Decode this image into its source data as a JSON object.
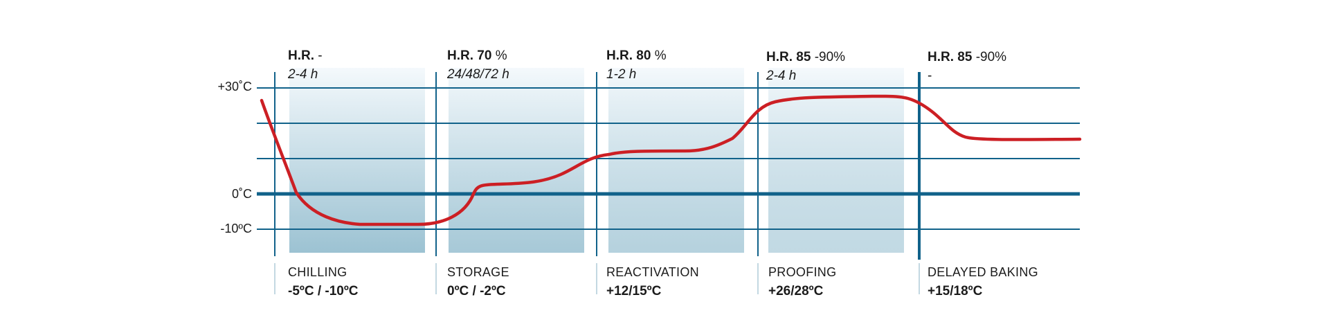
{
  "y_axis": {
    "ticks": [
      {
        "label": "+30˚C",
        "value": 30
      },
      {
        "label": "0˚C",
        "value": 0
      },
      {
        "label": "-10ºC",
        "value": -10
      }
    ]
  },
  "phases": [
    {
      "id": "chilling",
      "hr_label": "H.R.",
      "hr_value": "-",
      "time": "2-4 h",
      "name": "CHILLING",
      "temp_range": "-5ºC / -10ºC",
      "shade_level": 0.6
    },
    {
      "id": "storage",
      "hr_label": "H.R. 70",
      "hr_value": "%",
      "time": "24/48/72 h",
      "name": "STORAGE",
      "temp_range": "0ºC / -2ºC",
      "shade_level": 0.5
    },
    {
      "id": "reactivation",
      "hr_label": "H.R. 80",
      "hr_value": "%",
      "time": "1-2 h",
      "name": "REACTIVATION",
      "temp_range": "+12/15ºC",
      "shade_level": 0.36
    },
    {
      "id": "proofing",
      "hr_label": "H.R. 85",
      "hr_value": "-90%",
      "time": "2-4 h",
      "name": "PROOFING",
      "temp_range": "+26/28ºC",
      "shade_level": 0.24
    },
    {
      "id": "delayed-baking",
      "hr_label": "H.R. 85",
      "hr_value": "-90%",
      "time": "-",
      "name": "DELAYED BAKING",
      "temp_range": "+15/18ºC",
      "shade_level": 0
    }
  ],
  "colors": {
    "grid_line": "#11628a",
    "curve": "#cc1f24",
    "shade_dark": "#97bfd0",
    "shade_light": "#f4f9fc"
  }
}
